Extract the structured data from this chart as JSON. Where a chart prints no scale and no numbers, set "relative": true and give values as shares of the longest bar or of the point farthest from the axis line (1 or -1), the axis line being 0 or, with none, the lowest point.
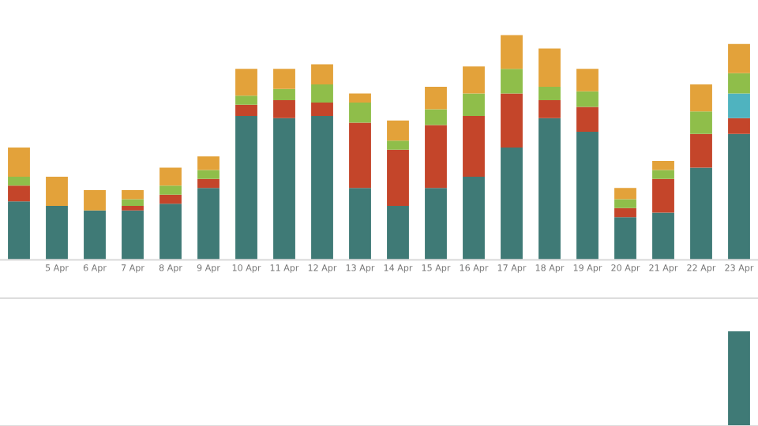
{
  "chart_data": [
    {
      "type": "bar",
      "stacked": true,
      "relative": true,
      "legend": false,
      "grid": false,
      "categories": [
        null,
        "5 Apr",
        "6 Apr",
        "7 Apr",
        "8 Apr",
        "9 Apr",
        "10 Apr",
        "11 Apr",
        "12 Apr",
        "13 Apr",
        "14 Apr",
        "15 Apr",
        "16 Apr",
        "17 Apr",
        "18 Apr",
        "19 Apr",
        "20 Apr",
        "21 Apr",
        "22 Apr",
        "23 Apr"
      ],
      "series": [
        {
          "color": "#3f7a76",
          "values": [
            0.26,
            0.24,
            0.22,
            0.22,
            0.25,
            0.32,
            0.64,
            0.63,
            0.64,
            0.32,
            0.24,
            0.32,
            0.37,
            0.5,
            0.63,
            0.57,
            0.19,
            0.21,
            0.41,
            0.56
          ]
        },
        {
          "color": "#c4452a",
          "values": [
            0.07,
            0,
            0,
            0.02,
            0.04,
            0.04,
            0.05,
            0.08,
            0.06,
            0.29,
            0.25,
            0.28,
            0.27,
            0.24,
            0.08,
            0.11,
            0.04,
            0.15,
            0.15,
            0.07
          ]
        },
        {
          "color": "#4fb3bf",
          "values": [
            0,
            0,
            0,
            0,
            0,
            0,
            0,
            0,
            0,
            0,
            0,
            0,
            0,
            0,
            0,
            0,
            0,
            0,
            0,
            0.11
          ]
        },
        {
          "color": "#8fbe4a",
          "values": [
            0.04,
            0,
            0,
            0.03,
            0.04,
            0.04,
            0.04,
            0.05,
            0.08,
            0.09,
            0.04,
            0.07,
            0.1,
            0.11,
            0.06,
            0.07,
            0.04,
            0.04,
            0.1,
            0.09
          ]
        },
        {
          "color": "#e3a23a",
          "values": [
            0.13,
            0.13,
            0.09,
            0.04,
            0.08,
            0.06,
            0.12,
            0.09,
            0.09,
            0.04,
            0.09,
            0.1,
            0.12,
            0.15,
            0.17,
            0.1,
            0.05,
            0.04,
            0.12,
            0.13
          ]
        }
      ]
    },
    {
      "type": "bar",
      "relative": true,
      "legend": false,
      "grid": false,
      "categories": [
        null,
        null,
        null,
        null,
        null,
        null,
        null,
        null,
        null,
        null,
        null,
        null,
        null,
        null,
        null,
        null,
        null,
        null,
        null,
        null
      ],
      "series": [
        {
          "color": "#3f7a76",
          "values": [
            null,
            null,
            null,
            null,
            null,
            null,
            null,
            null,
            null,
            null,
            null,
            null,
            null,
            null,
            null,
            null,
            null,
            null,
            null,
            1
          ]
        }
      ]
    }
  ]
}
